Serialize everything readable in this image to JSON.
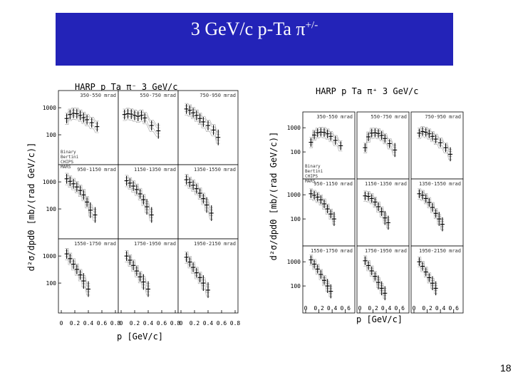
{
  "slide": {
    "title_main": "3 GeV/c  p-Ta  π",
    "title_sup": "+/-",
    "page_number": "18"
  },
  "colors": {
    "title_bg": "#2323b8",
    "title_text": "#ffffff",
    "data": "#000000",
    "models": "#9a9a9a"
  },
  "chart_data": [
    {
      "type": "scatter",
      "title": "HARP  p  Ta  π⁻  3 GeV/c",
      "ylabel": "d²σ/dpdΘ  [mb/(rad GeV/c)]",
      "xlabel": "p [GeV/c]",
      "x_ticks": [
        "0",
        "0.2",
        "0.4",
        "0.6",
        "0.8"
      ],
      "y_ticks": [
        "1000",
        "100"
      ],
      "xlim": [
        0,
        0.8
      ],
      "ylim_log": [
        10,
        3000
      ],
      "log_y": true,
      "legend": [
        "Binary",
        "Bertini",
        "CHIPS",
        "MARS"
      ],
      "panels": [
        {
          "label": "350-550 mrad",
          "points": [
            [
              0.08,
              400
            ],
            [
              0.13,
              560
            ],
            [
              0.18,
              620
            ],
            [
              0.23,
              600
            ],
            [
              0.28,
              520
            ],
            [
              0.33,
              430
            ],
            [
              0.38,
              360
            ],
            [
              0.45,
              280
            ],
            [
              0.53,
              200
            ]
          ]
        },
        {
          "label": "550-750 mrad",
          "points": [
            [
              0.05,
              560
            ],
            [
              0.1,
              600
            ],
            [
              0.15,
              580
            ],
            [
              0.2,
              520
            ],
            [
              0.25,
              480
            ],
            [
              0.3,
              520
            ],
            [
              0.35,
              420
            ],
            [
              0.45,
              220
            ],
            [
              0.55,
              140
            ]
          ]
        },
        {
          "label": "750-950 mrad",
          "points": [
            [
              0.08,
              900
            ],
            [
              0.13,
              800
            ],
            [
              0.18,
              650
            ],
            [
              0.23,
              520
            ],
            [
              0.28,
              400
            ],
            [
              0.33,
              300
            ],
            [
              0.4,
              220
            ],
            [
              0.48,
              150
            ],
            [
              0.55,
              80
            ]
          ]
        },
        {
          "label": "950-1150 mrad",
          "points": [
            [
              0.08,
              1300
            ],
            [
              0.13,
              1050
            ],
            [
              0.18,
              850
            ],
            [
              0.23,
              650
            ],
            [
              0.28,
              480
            ],
            [
              0.33,
              330
            ],
            [
              0.38,
              180
            ],
            [
              0.43,
              90
            ],
            [
              0.5,
              60
            ]
          ]
        },
        {
          "label": "1150-1350 mrad",
          "points": [
            [
              0.08,
              1100
            ],
            [
              0.13,
              900
            ],
            [
              0.18,
              700
            ],
            [
              0.23,
              520
            ],
            [
              0.28,
              360
            ],
            [
              0.33,
              220
            ],
            [
              0.38,
              120
            ],
            [
              0.45,
              60
            ]
          ]
        },
        {
          "label": "1350-1550 mrad",
          "points": [
            [
              0.08,
              1200
            ],
            [
              0.13,
              950
            ],
            [
              0.18,
              750
            ],
            [
              0.23,
              560
            ],
            [
              0.28,
              380
            ],
            [
              0.33,
              240
            ],
            [
              0.38,
              140
            ],
            [
              0.45,
              70
            ]
          ]
        },
        {
          "label": "1550-1750 mrad",
          "points": [
            [
              0.08,
              1200
            ],
            [
              0.13,
              800
            ],
            [
              0.18,
              500
            ],
            [
              0.23,
              320
            ],
            [
              0.28,
              200
            ],
            [
              0.33,
              120
            ],
            [
              0.4,
              60
            ]
          ]
        },
        {
          "label": "1750-1950 mrad",
          "points": [
            [
              0.08,
              1000
            ],
            [
              0.13,
              700
            ],
            [
              0.18,
              450
            ],
            [
              0.23,
              280
            ],
            [
              0.28,
              170
            ],
            [
              0.33,
              110
            ],
            [
              0.4,
              60
            ]
          ]
        },
        {
          "label": "1950-2150 mrad",
          "points": [
            [
              0.08,
              900
            ],
            [
              0.13,
              600
            ],
            [
              0.18,
              380
            ],
            [
              0.23,
              240
            ],
            [
              0.28,
              160
            ],
            [
              0.33,
              100
            ],
            [
              0.4,
              55
            ]
          ]
        }
      ]
    },
    {
      "type": "scatter",
      "title": "HARP  p  Ta  π⁺  3 GeV/c",
      "ylabel": "d²σ/dpdΘ  [mb/(rad GeV/c)]",
      "xlabel": "p [GeV/c]",
      "x_ticks": [
        "0",
        "0.2",
        "0.4",
        "0.6"
      ],
      "y_ticks": [
        "1000",
        "100"
      ],
      "xlim": [
        0,
        0.7
      ],
      "ylim_log": [
        10,
        3000
      ],
      "log_y": true,
      "legend": [
        "Binary",
        "Bertini",
        "CHIPS",
        "MARS"
      ],
      "panels": [
        {
          "label": "350-550 mrad",
          "points": [
            [
              0.08,
              250
            ],
            [
              0.13,
              500
            ],
            [
              0.18,
              620
            ],
            [
              0.23,
              660
            ],
            [
              0.28,
              640
            ],
            [
              0.33,
              560
            ],
            [
              0.38,
              440
            ],
            [
              0.45,
              300
            ],
            [
              0.53,
              180
            ]
          ]
        },
        {
          "label": "550-750 mrad",
          "points": [
            [
              0.08,
              150
            ],
            [
              0.13,
              420
            ],
            [
              0.18,
              600
            ],
            [
              0.23,
              620
            ],
            [
              0.28,
              580
            ],
            [
              0.33,
              480
            ],
            [
              0.38,
              360
            ],
            [
              0.45,
              220
            ],
            [
              0.53,
              120
            ]
          ]
        },
        {
          "label": "750-950 mrad",
          "points": [
            [
              0.08,
              600
            ],
            [
              0.13,
              700
            ],
            [
              0.18,
              650
            ],
            [
              0.23,
              560
            ],
            [
              0.28,
              440
            ],
            [
              0.33,
              340
            ],
            [
              0.4,
              240
            ],
            [
              0.48,
              150
            ],
            [
              0.55,
              80
            ]
          ]
        },
        {
          "label": "950-1150 mrad",
          "points": [
            [
              0.08,
              1100
            ],
            [
              0.13,
              950
            ],
            [
              0.18,
              800
            ],
            [
              0.23,
              620
            ],
            [
              0.28,
              420
            ],
            [
              0.33,
              260
            ],
            [
              0.38,
              160
            ],
            [
              0.43,
              100
            ]
          ]
        },
        {
          "label": "1150-1350 mrad",
          "points": [
            [
              0.08,
              900
            ],
            [
              0.13,
              850
            ],
            [
              0.18,
              700
            ],
            [
              0.23,
              500
            ],
            [
              0.28,
              320
            ],
            [
              0.33,
              200
            ],
            [
              0.38,
              110
            ],
            [
              0.43,
              70
            ]
          ]
        },
        {
          "label": "1350-1550 mrad",
          "points": [
            [
              0.08,
              1100
            ],
            [
              0.13,
              950
            ],
            [
              0.18,
              700
            ],
            [
              0.23,
              480
            ],
            [
              0.28,
              300
            ],
            [
              0.33,
              170
            ],
            [
              0.38,
              100
            ],
            [
              0.43,
              60
            ]
          ]
        },
        {
          "label": "1550-1750 mrad",
          "points": [
            [
              0.08,
              1200
            ],
            [
              0.13,
              800
            ],
            [
              0.18,
              500
            ],
            [
              0.23,
              300
            ],
            [
              0.28,
              170
            ],
            [
              0.33,
              100
            ],
            [
              0.38,
              60
            ]
          ]
        },
        {
          "label": "1750-1950 mrad",
          "points": [
            [
              0.08,
              1100
            ],
            [
              0.13,
              700
            ],
            [
              0.18,
              420
            ],
            [
              0.23,
              250
            ],
            [
              0.28,
              140
            ],
            [
              0.33,
              80
            ],
            [
              0.38,
              50
            ]
          ]
        },
        {
          "label": "1950-2150 mrad",
          "points": [
            [
              0.08,
              1000
            ],
            [
              0.13,
              650
            ],
            [
              0.18,
              380
            ],
            [
              0.23,
              220
            ],
            [
              0.28,
              130
            ],
            [
              0.33,
              80
            ]
          ]
        }
      ]
    }
  ]
}
